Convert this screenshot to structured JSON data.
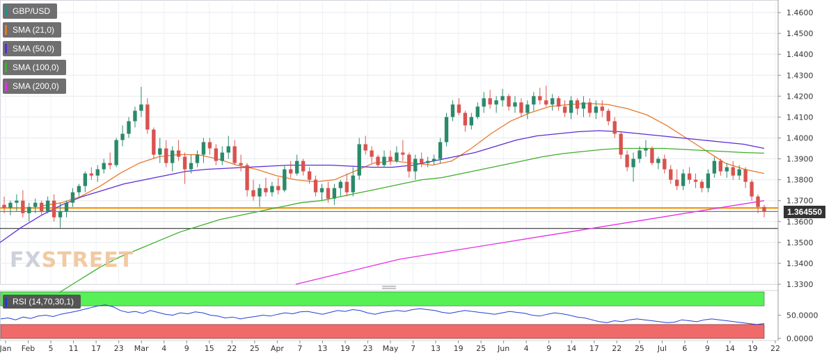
{
  "legend": [
    {
      "label": "GBP/USD",
      "color": "#1f8f8f"
    },
    {
      "label": "SMA (21,0)",
      "color": "#e8782b"
    },
    {
      "label": "SMA (50,0)",
      "color": "#5b2bd6"
    },
    {
      "label": "SMA (100,0)",
      "color": "#3fae2a"
    },
    {
      "label": "SMA (200,0)",
      "color": "#e62ee6"
    }
  ],
  "logo": {
    "fx": "FX",
    "street": "STREET"
  },
  "price_tag": "1.364550",
  "rsi_label": "RSI (14,70,30,1)",
  "colors": {
    "up": "#2a8a6a",
    "down": "#d9534f",
    "rsi_line": "#1f3fd6",
    "overbought_zone": "#57f057",
    "oversold_zone": "#f06a6a",
    "horizontal_support": "#f0a020",
    "horizontal_line": "#333333"
  },
  "chart_data": [
    {
      "type": "candlestick",
      "title": "",
      "ylim": [
        1.33,
        1.465
      ],
      "y_ticks": [
        "1.4600",
        "1.4500",
        "1.4400",
        "1.4300",
        "1.4200",
        "1.4100",
        "1.4000",
        "1.3900",
        "1.3800",
        "1.3700",
        "1.3600",
        "1.3500",
        "1.3400",
        "1.3300"
      ],
      "x_ticks": [
        "Jan",
        "Feb",
        "5",
        "11",
        "17",
        "23",
        "Mar",
        "4",
        "9",
        "15",
        "22",
        "25",
        "Apr",
        "7",
        "13",
        "19",
        "23",
        "May",
        "7",
        "13",
        "19",
        "25",
        "Jun",
        "4",
        "9",
        "14",
        "17",
        "22",
        "25",
        "Jul",
        "6",
        "9",
        "14",
        "19",
        "22"
      ],
      "horizontal_levels": [
        {
          "value": 1.3665,
          "color": "#f0a020"
        },
        {
          "value": 1.3648,
          "color": "#777777"
        },
        {
          "value": 1.3567,
          "color": "#333333"
        }
      ],
      "candles_ohlc": [
        [
          1.368,
          1.372,
          1.364,
          1.3665
        ],
        [
          1.3665,
          1.37,
          1.363,
          1.369
        ],
        [
          1.369,
          1.373,
          1.365,
          1.37
        ],
        [
          1.37,
          1.375,
          1.362,
          1.364
        ],
        [
          1.364,
          1.369,
          1.36,
          1.367
        ],
        [
          1.367,
          1.371,
          1.364,
          1.369
        ],
        [
          1.369,
          1.37,
          1.363,
          1.365
        ],
        [
          1.365,
          1.372,
          1.364,
          1.37
        ],
        [
          1.37,
          1.373,
          1.36,
          1.362
        ],
        [
          1.362,
          1.369,
          1.357,
          1.365
        ],
        [
          1.365,
          1.37,
          1.362,
          1.369
        ],
        [
          1.369,
          1.376,
          1.367,
          1.374
        ],
        [
          1.374,
          1.378,
          1.372,
          1.377
        ],
        [
          1.377,
          1.384,
          1.374,
          1.383
        ],
        [
          1.383,
          1.386,
          1.38,
          1.382
        ],
        [
          1.382,
          1.387,
          1.379,
          1.385
        ],
        [
          1.385,
          1.39,
          1.383,
          1.388
        ],
        [
          1.388,
          1.393,
          1.385,
          1.387
        ],
        [
          1.387,
          1.4,
          1.386,
          1.399
        ],
        [
          1.399,
          1.406,
          1.396,
          1.402
        ],
        [
          1.402,
          1.41,
          1.4,
          1.408
        ],
        [
          1.408,
          1.415,
          1.405,
          1.413
        ],
        [
          1.413,
          1.4245,
          1.41,
          1.416
        ],
        [
          1.416,
          1.419,
          1.402,
          1.404
        ],
        [
          1.404,
          1.405,
          1.39,
          1.392
        ],
        [
          1.392,
          1.4,
          1.388,
          1.395
        ],
        [
          1.395,
          1.399,
          1.386,
          1.388
        ],
        [
          1.388,
          1.396,
          1.384,
          1.394
        ],
        [
          1.394,
          1.399,
          1.389,
          1.391
        ],
        [
          1.391,
          1.393,
          1.378,
          1.385
        ],
        [
          1.385,
          1.392,
          1.383,
          1.388
        ],
        [
          1.388,
          1.394,
          1.386,
          1.392
        ],
        [
          1.392,
          1.4,
          1.388,
          1.398
        ],
        [
          1.398,
          1.4,
          1.392,
          1.395
        ],
        [
          1.395,
          1.397,
          1.387,
          1.389
        ],
        [
          1.389,
          1.396,
          1.387,
          1.393
        ],
        [
          1.393,
          1.401,
          1.39,
          1.396
        ],
        [
          1.396,
          1.399,
          1.387,
          1.388
        ],
        [
          1.388,
          1.392,
          1.384,
          1.387
        ],
        [
          1.387,
          1.388,
          1.372,
          1.375
        ],
        [
          1.375,
          1.38,
          1.37,
          1.372
        ],
        [
          1.372,
          1.378,
          1.367,
          1.376
        ],
        [
          1.376,
          1.381,
          1.372,
          1.374
        ],
        [
          1.374,
          1.379,
          1.372,
          1.377
        ],
        [
          1.377,
          1.381,
          1.373,
          1.375
        ],
        [
          1.375,
          1.387,
          1.374,
          1.385
        ],
        [
          1.385,
          1.389,
          1.381,
          1.383
        ],
        [
          1.383,
          1.392,
          1.382,
          1.389
        ],
        [
          1.389,
          1.39,
          1.382,
          1.384
        ],
        [
          1.384,
          1.386,
          1.378,
          1.38
        ],
        [
          1.38,
          1.382,
          1.372,
          1.374
        ],
        [
          1.374,
          1.378,
          1.37,
          1.376
        ],
        [
          1.376,
          1.379,
          1.369,
          1.371
        ],
        [
          1.371,
          1.378,
          1.368,
          1.376
        ],
        [
          1.376,
          1.38,
          1.372,
          1.379
        ],
        [
          1.379,
          1.383,
          1.372,
          1.374
        ],
        [
          1.374,
          1.386,
          1.372,
          1.382
        ],
        [
          1.382,
          1.4,
          1.38,
          1.397
        ],
        [
          1.397,
          1.401,
          1.392,
          1.394
        ],
        [
          1.394,
          1.396,
          1.388,
          1.391
        ],
        [
          1.391,
          1.392,
          1.386,
          1.387
        ],
        [
          1.387,
          1.394,
          1.386,
          1.391
        ],
        [
          1.391,
          1.394,
          1.387,
          1.389
        ],
        [
          1.389,
          1.396,
          1.388,
          1.393
        ],
        [
          1.393,
          1.399,
          1.389,
          1.392
        ],
        [
          1.392,
          1.393,
          1.381,
          1.384
        ],
        [
          1.384,
          1.392,
          1.38,
          1.39
        ],
        [
          1.39,
          1.393,
          1.386,
          1.388
        ],
        [
          1.388,
          1.391,
          1.386,
          1.389
        ],
        [
          1.389,
          1.392,
          1.387,
          1.39
        ],
        [
          1.39,
          1.4,
          1.388,
          1.398
        ],
        [
          1.398,
          1.412,
          1.396,
          1.41
        ],
        [
          1.41,
          1.418,
          1.408,
          1.416
        ],
        [
          1.416,
          1.419,
          1.411,
          1.412
        ],
        [
          1.412,
          1.413,
          1.403,
          1.406
        ],
        [
          1.406,
          1.412,
          1.404,
          1.41
        ],
        [
          1.41,
          1.417,
          1.409,
          1.415
        ],
        [
          1.415,
          1.422,
          1.412,
          1.419
        ],
        [
          1.419,
          1.423,
          1.414,
          1.416
        ],
        [
          1.416,
          1.42,
          1.412,
          1.418
        ],
        [
          1.418,
          1.4235,
          1.415,
          1.42
        ],
        [
          1.42,
          1.421,
          1.413,
          1.415
        ],
        [
          1.415,
          1.42,
          1.412,
          1.417
        ],
        [
          1.417,
          1.419,
          1.41,
          1.412
        ],
        [
          1.412,
          1.418,
          1.409,
          1.416
        ],
        [
          1.416,
          1.422,
          1.413,
          1.42
        ],
        [
          1.42,
          1.424,
          1.416,
          1.418
        ],
        [
          1.418,
          1.425,
          1.415,
          1.416
        ],
        [
          1.416,
          1.421,
          1.413,
          1.419
        ],
        [
          1.419,
          1.42,
          1.413,
          1.415
        ],
        [
          1.415,
          1.418,
          1.41,
          1.412
        ],
        [
          1.412,
          1.42,
          1.409,
          1.418
        ],
        [
          1.418,
          1.419,
          1.411,
          1.414
        ],
        [
          1.414,
          1.42,
          1.41,
          1.417
        ],
        [
          1.417,
          1.419,
          1.41,
          1.412
        ],
        [
          1.412,
          1.418,
          1.409,
          1.415
        ],
        [
          1.415,
          1.418,
          1.41,
          1.413
        ],
        [
          1.413,
          1.414,
          1.406,
          1.408
        ],
        [
          1.408,
          1.41,
          1.4,
          1.402
        ],
        [
          1.402,
          1.403,
          1.39,
          1.392
        ],
        [
          1.392,
          1.394,
          1.384,
          1.386
        ],
        [
          1.386,
          1.393,
          1.379,
          1.39
        ],
        [
          1.39,
          1.396,
          1.388,
          1.394
        ],
        [
          1.394,
          1.399,
          1.391,
          1.395
        ],
        [
          1.395,
          1.396,
          1.387,
          1.388
        ],
        [
          1.388,
          1.391,
          1.385,
          1.39
        ],
        [
          1.39,
          1.392,
          1.383,
          1.385
        ],
        [
          1.385,
          1.387,
          1.378,
          1.38
        ],
        [
          1.38,
          1.385,
          1.375,
          1.377
        ],
        [
          1.377,
          1.385,
          1.375,
          1.383
        ],
        [
          1.383,
          1.386,
          1.378,
          1.38
        ],
        [
          1.38,
          1.383,
          1.376,
          1.379
        ],
        [
          1.379,
          1.38,
          1.374,
          1.376
        ],
        [
          1.376,
          1.385,
          1.374,
          1.383
        ],
        [
          1.383,
          1.391,
          1.381,
          1.389
        ],
        [
          1.389,
          1.39,
          1.382,
          1.384
        ],
        [
          1.384,
          1.388,
          1.381,
          1.386
        ],
        [
          1.386,
          1.389,
          1.38,
          1.382
        ],
        [
          1.382,
          1.387,
          1.38,
          1.385
        ],
        [
          1.385,
          1.386,
          1.376,
          1.379
        ],
        [
          1.379,
          1.38,
          1.37,
          1.372
        ],
        [
          1.372,
          1.373,
          1.364,
          1.367
        ],
        [
          1.367,
          1.368,
          1.362,
          1.3646
        ]
      ],
      "sma21": [
        1.3675,
        1.369,
        1.372,
        1.377,
        1.383,
        1.388,
        1.391,
        1.392,
        1.392,
        1.39,
        1.387,
        1.385,
        1.382,
        1.38,
        1.379,
        1.38,
        1.384,
        1.388,
        1.389,
        1.388,
        1.387,
        1.389,
        1.395,
        1.402,
        1.408,
        1.412,
        1.415,
        1.416,
        1.4165,
        1.416,
        1.414,
        1.411,
        1.406,
        1.4,
        1.394,
        1.388,
        1.385,
        1.383
      ],
      "sma50": [
        1.35,
        1.357,
        1.363,
        1.368,
        1.372,
        1.375,
        1.378,
        1.38,
        1.382,
        1.384,
        1.385,
        1.3855,
        1.386,
        1.3865,
        1.387,
        1.387,
        1.387,
        1.3865,
        1.386,
        1.386,
        1.387,
        1.389,
        1.391,
        1.393,
        1.396,
        1.399,
        1.401,
        1.402,
        1.403,
        1.4035,
        1.403,
        1.402,
        1.401,
        1.4,
        1.399,
        1.398,
        1.397,
        1.395
      ],
      "sma100": [
        1.326,
        1.332,
        1.338,
        1.343,
        1.347,
        1.351,
        1.355,
        1.358,
        1.361,
        1.363,
        1.365,
        1.367,
        1.369,
        1.37,
        1.372,
        1.374,
        1.376,
        1.378,
        1.38,
        1.381,
        1.383,
        1.385,
        1.387,
        1.389,
        1.391,
        1.3925,
        1.3935,
        1.3945,
        1.395,
        1.395,
        1.395,
        1.3945,
        1.394,
        1.3935,
        1.393,
        1.3927
      ],
      "sma200": [
        1.33,
        1.333,
        1.336,
        1.339,
        1.342,
        1.344,
        1.346,
        1.348,
        1.35,
        1.352,
        1.354,
        1.356,
        1.358,
        1.36,
        1.362,
        1.364,
        1.366,
        1.368,
        1.37
      ]
    },
    {
      "type": "line",
      "title": "RSI (14,70,30,1)",
      "ylim": [
        0,
        100
      ],
      "y_ticks": [
        "50.0000",
        "0.0000"
      ],
      "overbought": 70,
      "oversold": 30,
      "values": [
        42,
        44,
        40,
        46,
        43,
        48,
        50,
        47,
        52,
        55,
        58,
        62,
        66,
        70,
        72,
        68,
        60,
        56,
        58,
        54,
        60,
        56,
        52,
        50,
        55,
        53,
        57,
        55,
        50,
        48,
        44,
        46,
        42,
        45,
        47,
        50,
        48,
        52,
        55,
        53,
        57,
        58,
        55,
        52,
        56,
        60,
        58,
        62,
        60,
        55,
        52,
        56,
        58,
        60,
        58,
        62,
        64,
        62,
        60,
        56,
        54,
        57,
        60,
        58,
        56,
        54,
        52,
        55,
        58,
        56,
        54,
        50,
        48,
        52,
        55,
        53,
        50,
        46,
        44,
        40,
        36,
        34,
        38,
        36,
        40,
        42,
        40,
        38,
        36,
        34,
        35,
        40,
        38,
        36,
        40,
        42,
        40,
        38,
        36,
        34,
        32,
        30,
        32
      ]
    }
  ]
}
